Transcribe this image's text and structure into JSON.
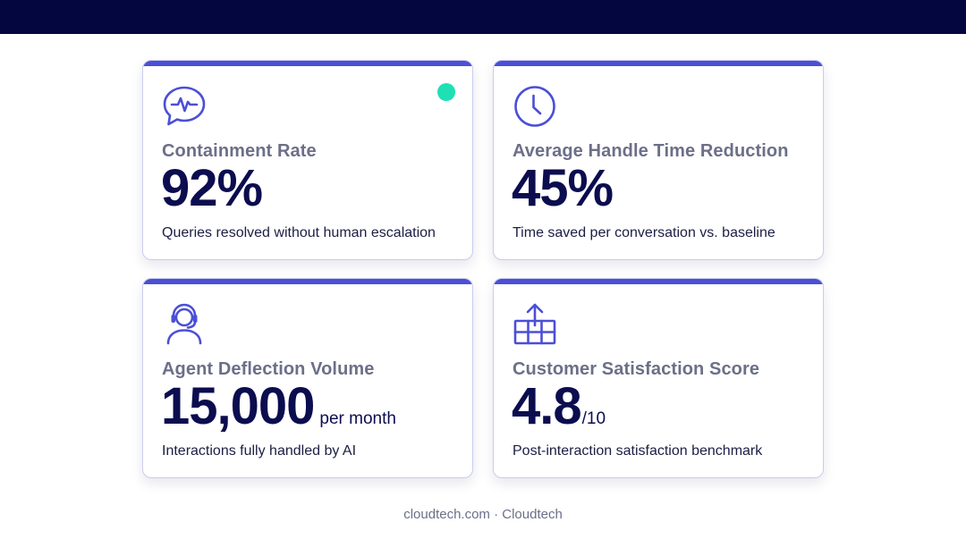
{
  "colors": {
    "topbar": "#04063f",
    "accent": "#4b4fd6",
    "value_text": "#0b0d4f",
    "label_text": "#6c6f88",
    "status_dot": "#1fe0b4"
  },
  "cards": [
    {
      "icon": "chat-pulse-icon",
      "label": "Containment Rate",
      "value": "92%",
      "suffix": "",
      "description": "Queries resolved without human escalation",
      "status_dot": true
    },
    {
      "icon": "clock-icon",
      "label": "Average Handle Time Reduction",
      "value": "45%",
      "suffix": "",
      "description": "Time saved per conversation vs. baseline"
    },
    {
      "icon": "headset-agent-icon",
      "label": "Agent Deflection Volume",
      "value": "15,000",
      "suffix": "per month",
      "description": "Interactions fully handled by AI"
    },
    {
      "icon": "upload-grid-icon",
      "label": "Customer Satisfaction Score",
      "value": "4.8",
      "suffix": "/10",
      "description": "Post-interaction satisfaction benchmark"
    }
  ],
  "footer": {
    "text": "cloudtech.com · Cloudtech"
  }
}
